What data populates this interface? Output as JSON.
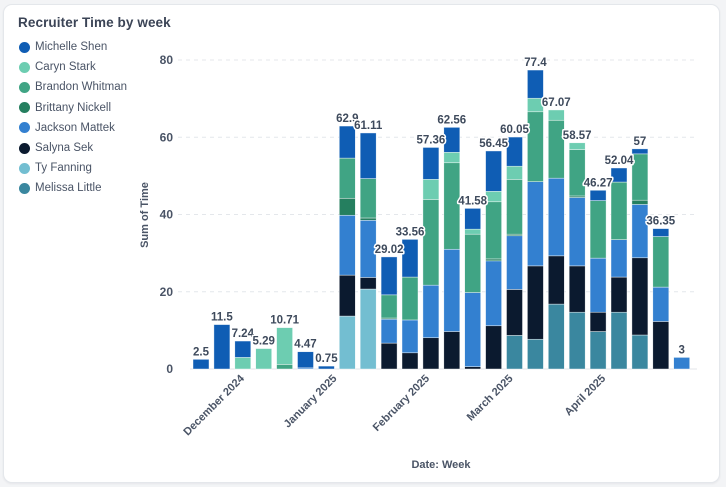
{
  "card": {
    "title": "Recruiter Time by week"
  },
  "legend": [
    {
      "name": "Michelle Shen",
      "color": "#0f5db4"
    },
    {
      "name": "Caryn Stark",
      "color": "#6dcdb1"
    },
    {
      "name": "Brandon Whitman",
      "color": "#40a484"
    },
    {
      "name": "Brittany Nickell",
      "color": "#257f5f"
    },
    {
      "name": "Jackson Mattek",
      "color": "#3380d0"
    },
    {
      "name": "Salyna Sek",
      "color": "#0b1a2f"
    },
    {
      "name": "Ty Fanning",
      "color": "#73bed1"
    },
    {
      "name": "Melissa Little",
      "color": "#3a879f"
    }
  ],
  "chart_data": {
    "type": "bar",
    "stacked": true,
    "title": "Recruiter Time by week",
    "xlabel": "Date: Week",
    "ylabel": "Sum of Time",
    "ylim": [
      0,
      80
    ],
    "yticks": [
      "0",
      "20",
      "40",
      "60",
      "80"
    ],
    "ytick_values": [
      0,
      20,
      40,
      60,
      80
    ],
    "grid": true,
    "legend_position": "top-left",
    "x": [
      "2024-11-17",
      "2024-11-24",
      "2024-12-01",
      "2024-12-08",
      "2024-12-15",
      "2024-12-22",
      "2024-12-29",
      "2025-01-05",
      "2025-01-12",
      "2025-01-19",
      "2025-01-26",
      "2025-02-02",
      "2025-02-09",
      "2025-02-16",
      "2025-02-23",
      "2025-03-02",
      "2025-03-09",
      "2025-03-16",
      "2025-03-23",
      "2025-03-30",
      "2025-04-06",
      "2025-04-13",
      "2025-04-20",
      "2025-04-27"
    ],
    "xticks": [
      {
        "label": "December 2024",
        "date": "2024-12-01"
      },
      {
        "label": "January 2025",
        "date": "2025-01-01"
      },
      {
        "label": "February 2025",
        "date": "2025-02-01"
      },
      {
        "label": "March 2025",
        "date": "2025-03-01"
      },
      {
        "label": "April 2025",
        "date": "2025-04-01"
      }
    ],
    "totals": [
      2.5,
      11.5,
      7.24,
      5.29,
      10.71,
      4.47,
      0.75,
      62.9,
      61.11,
      29.02,
      33.56,
      57.36,
      62.56,
      41.58,
      56.45,
      60.05,
      77.4,
      67.07,
      58.57,
      46.27,
      52.04,
      57,
      36.35,
      3
    ],
    "total_labels": [
      "2.5",
      "11.5",
      "7.24",
      "5.29",
      "10.71",
      "4.47",
      "0.75",
      "62.9",
      "61.11",
      "29.02",
      "33.56",
      "57.36",
      "62.56",
      "41.58",
      "56.45",
      "60.05",
      "77.4",
      "67.07",
      "58.57",
      "46.27",
      "52.04",
      "57",
      "36.35",
      "3"
    ],
    "series": [
      {
        "name": "Michelle Shen",
        "color": "#0f5db4",
        "values": [
          2.5,
          11.5,
          4.24,
          0,
          0,
          4.17,
          0.75,
          8.3,
          11.81,
          9.82,
          9.76,
          8.26,
          6.46,
          5.38,
          10.45,
          7.55,
          7.3,
          0,
          0,
          2.67,
          3.64,
          1.3,
          2.05,
          0
        ]
      },
      {
        "name": "Caryn Stark",
        "color": "#6dcdb1",
        "values": [
          0,
          0,
          3.0,
          5.29,
          9.51,
          0,
          0,
          0,
          0,
          0,
          0,
          5.2,
          2.7,
          1.3,
          2.7,
          3.4,
          3.5,
          2.67,
          1.77,
          0,
          0,
          0,
          0,
          0
        ]
      },
      {
        "name": "Brandon Whitman",
        "color": "#40a484",
        "values": [
          0,
          0,
          0,
          0,
          1.2,
          0,
          0,
          10.4,
          10.2,
          6.0,
          11.1,
          22.2,
          22.4,
          15.1,
          14.8,
          14.2,
          18.1,
          15.0,
          12.0,
          14.9,
          14.9,
          12.0,
          13.1,
          0
        ]
      },
      {
        "name": "Brittany Nickell",
        "color": "#257f5f",
        "values": [
          0,
          0,
          0,
          0,
          0,
          0,
          0,
          4.4,
          0.6,
          0.3,
          0,
          0,
          0,
          0,
          0.5,
          0.4,
          0,
          0,
          0.4,
          0,
          0,
          1.1,
          0,
          0
        ]
      },
      {
        "name": "Jackson Mattek",
        "color": "#3380d0",
        "values": [
          0,
          0,
          0,
          0,
          0,
          0.3,
          0,
          15.5,
          14.8,
          6.2,
          8.5,
          13.6,
          21.3,
          19.2,
          16.8,
          13.9,
          21.8,
          20.1,
          17.7,
          14.0,
          9.7,
          13.8,
          8.9,
          3
        ]
      },
      {
        "name": "Salyna Sek",
        "color": "#0b1a2f",
        "values": [
          0,
          0,
          0,
          0,
          0,
          0,
          0,
          10.6,
          3.0,
          6.7,
          4.2,
          8.1,
          9.7,
          0.6,
          11.2,
          11.9,
          19.0,
          12.5,
          12.0,
          5.0,
          9.1,
          20.0,
          12.3,
          0
        ]
      },
      {
        "name": "Ty Fanning",
        "color": "#73bed1",
        "values": [
          0,
          0,
          0,
          0,
          0,
          0,
          0,
          13.7,
          20.7,
          0,
          0,
          0,
          0,
          0,
          0,
          0,
          0,
          0,
          0,
          0,
          0,
          0,
          0,
          0
        ]
      },
      {
        "name": "Melissa Little",
        "color": "#3a879f",
        "values": [
          0,
          0,
          0,
          0,
          0,
          0,
          0,
          0,
          0,
          0,
          0,
          0,
          0,
          0,
          0,
          8.7,
          7.7,
          16.8,
          14.7,
          9.7,
          14.7,
          8.8,
          0,
          0
        ]
      }
    ]
  }
}
